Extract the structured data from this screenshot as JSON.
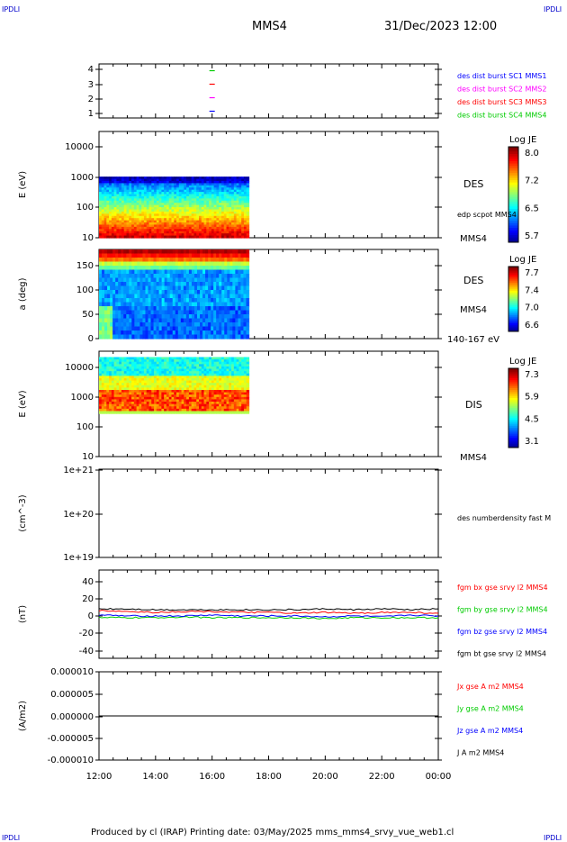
{
  "corners": {
    "tl": "IPDLI",
    "tr": "IPDLI",
    "bl": "IPDLI",
    "br": "IPDLI"
  },
  "header": {
    "spacecraft": "MMS4",
    "datetime": "31/Dec/2023 12:00"
  },
  "footer": {
    "text": "Produced by cl (IRAP)   Printing date: 03/May/2025   mms_mms4_srvy_vue_web1.cl"
  },
  "time_axis": {
    "ticks": [
      "12:00",
      "14:00",
      "16:00",
      "18:00",
      "20:00",
      "22:00",
      "00:00"
    ],
    "start_hour": 12,
    "end_hour": 24
  },
  "chart_data": [
    {
      "type": "scatter",
      "ylabel": "",
      "yticks": [
        "1",
        "2",
        "3",
        "4"
      ],
      "ylim": [
        0.5,
        4.5
      ],
      "series": [
        {
          "name": "des dist burst SC1 MMS1",
          "color": "#0000ff",
          "x": [
            16.0
          ],
          "y": [
            1
          ]
        },
        {
          "name": "des dist burst SC2 MMS2",
          "color": "#ff00ff",
          "x": [
            16.0
          ],
          "y": [
            2
          ]
        },
        {
          "name": "des dist burst SC3 MMS3",
          "color": "#ff0000",
          "x": [
            16.0
          ],
          "y": [
            3
          ]
        },
        {
          "name": "des dist burst SC4 MMS4",
          "color": "#00cc00",
          "x": [
            16.0
          ],
          "y": [
            4
          ]
        }
      ]
    },
    {
      "type": "heatmap",
      "ylabel": "E (eV)",
      "yticks": [
        "10",
        "100",
        "1000",
        "10000"
      ],
      "ylog": true,
      "ylim": [
        10,
        30000
      ],
      "data_xlim": [
        12.0,
        17.3
      ],
      "data_ylim": [
        10,
        1000
      ],
      "label": "DES",
      "note": "edp scpot MMS4",
      "sc": "MMS4",
      "colorbar": {
        "title": "Log JE",
        "ticks": [
          "8.0",
          "7.2",
          "6.5",
          "5.7"
        ]
      }
    },
    {
      "type": "heatmap",
      "ylabel": "a (deg)",
      "yticks": [
        "0",
        "50",
        "100",
        "150"
      ],
      "ylim": [
        0,
        180
      ],
      "data_xlim": [
        12.0,
        17.3
      ],
      "label": "DES",
      "sc": "MMS4",
      "energy_range": "140-167 eV",
      "colorbar": {
        "title": "Log JE",
        "ticks": [
          "7.7",
          "7.4",
          "7.0",
          "6.6"
        ]
      }
    },
    {
      "type": "heatmap",
      "ylabel": "E (eV)",
      "yticks": [
        "10",
        "100",
        "1000",
        "10000"
      ],
      "ylog": true,
      "ylim": [
        10,
        15000
      ],
      "data_xlim": [
        12.0,
        17.3
      ],
      "data_ylim": [
        200,
        10000
      ],
      "label": "DIS",
      "sc": "MMS4",
      "colorbar": {
        "title": "Log JE",
        "ticks": [
          "7.3",
          "5.9",
          "4.5",
          "3.1"
        ]
      }
    },
    {
      "type": "line",
      "ylabel": "(cm^-3)",
      "yticks": [
        "1e+19",
        "1e+20",
        "1e+21"
      ],
      "series": [
        {
          "name": "des numberdensity fast M",
          "values": []
        }
      ]
    },
    {
      "type": "line",
      "ylabel": "(nT)",
      "yticks": [
        "-40",
        "-20",
        "0",
        "20",
        "40"
      ],
      "ylim": [
        -50,
        50
      ],
      "x": [
        12.0,
        13.0,
        14.0,
        15.0,
        16.0,
        17.0,
        18.0,
        19.0,
        20.0,
        21.0,
        22.0,
        23.0,
        24.0
      ],
      "series": [
        {
          "name": "fgm bx gse srvy l2 MMS4",
          "color": "#ff0000",
          "values": [
            4,
            3,
            2,
            3,
            3,
            2,
            2,
            1,
            2,
            1,
            2,
            2,
            1
          ]
        },
        {
          "name": "fgm by gse srvy l2 MMS4",
          "color": "#00cc00",
          "values": [
            -4,
            -4,
            -4,
            -3,
            -4,
            -4,
            -4,
            -4,
            -5,
            -4,
            -4,
            -4,
            -4
          ]
        },
        {
          "name": "fgm bz gse srvy l2 MMS4",
          "color": "#0000ff",
          "values": [
            -1,
            -2,
            -2,
            -2,
            -1,
            -2,
            -2,
            -2,
            -3,
            -2,
            -3,
            -1,
            -2
          ]
        },
        {
          "name": "fgm bt gse srvy l2 MMS4",
          "color": "#000000",
          "values": [
            6,
            6,
            5,
            5,
            5,
            5,
            5,
            5,
            6,
            5,
            6,
            5,
            6
          ]
        }
      ]
    },
    {
      "type": "line",
      "ylabel": "(A/m2)",
      "yticks": [
        "-0.000010",
        "-0.000005",
        "0.000000",
        "0.000005",
        "0.000010"
      ],
      "ylim": [
        -1e-05,
        1e-05
      ],
      "x": [
        12.0,
        24.0
      ],
      "series": [
        {
          "name": "Jx gse A m2 MMS4",
          "color": "#ff0000",
          "values": [
            0,
            0
          ]
        },
        {
          "name": "Jy gse A m2 MMS4",
          "color": "#00cc00",
          "values": [
            0,
            0
          ]
        },
        {
          "name": "Jz gse A m2 MMS4",
          "color": "#0000ff",
          "values": [
            0,
            0
          ]
        },
        {
          "name": "J A m2 MMS4",
          "color": "#000000",
          "values": [
            0,
            0
          ]
        }
      ]
    }
  ]
}
